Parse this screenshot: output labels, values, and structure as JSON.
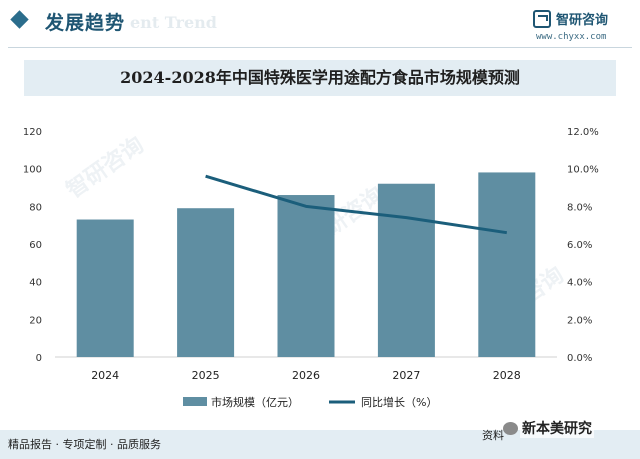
{
  "header": {
    "section_title": "发展趋势",
    "watermark_en": "ent Trend",
    "logo_name": "智研咨询",
    "logo_url": "www.chyxx.com"
  },
  "chart_data": {
    "type": "bar",
    "title": "2024-2028年中国特殊医学用途配方食品市场规模预测",
    "categories": [
      "2024",
      "2025",
      "2026",
      "2027",
      "2028"
    ],
    "series": [
      {
        "name": "市场规模（亿元）",
        "kind": "bar",
        "axis": "left",
        "values": [
          73,
          79,
          86,
          92,
          98
        ]
      },
      {
        "name": "同比增长（%）",
        "kind": "line",
        "axis": "right",
        "values": [
          null,
          9.6,
          8.0,
          7.4,
          6.6
        ]
      }
    ],
    "left_axis": {
      "min": 0,
      "max": 120,
      "ticks": [
        "0",
        "20",
        "40",
        "60",
        "80",
        "100",
        "120"
      ]
    },
    "right_axis": {
      "min": 0,
      "max": 12,
      "ticks": [
        "0.0%",
        "2.0%",
        "4.0%",
        "6.0%",
        "8.0%",
        "10.0%",
        "12.0%"
      ]
    },
    "legend_position": "bottom",
    "grid": false,
    "colors": {
      "bar": "#5f8ea2",
      "line": "#1b5e7b"
    }
  },
  "watermark": "智研咨询",
  "footer": {
    "text": "精品报告 · 专项定制 · 品质服务",
    "source": "资料",
    "wechat": "新本美研究"
  }
}
